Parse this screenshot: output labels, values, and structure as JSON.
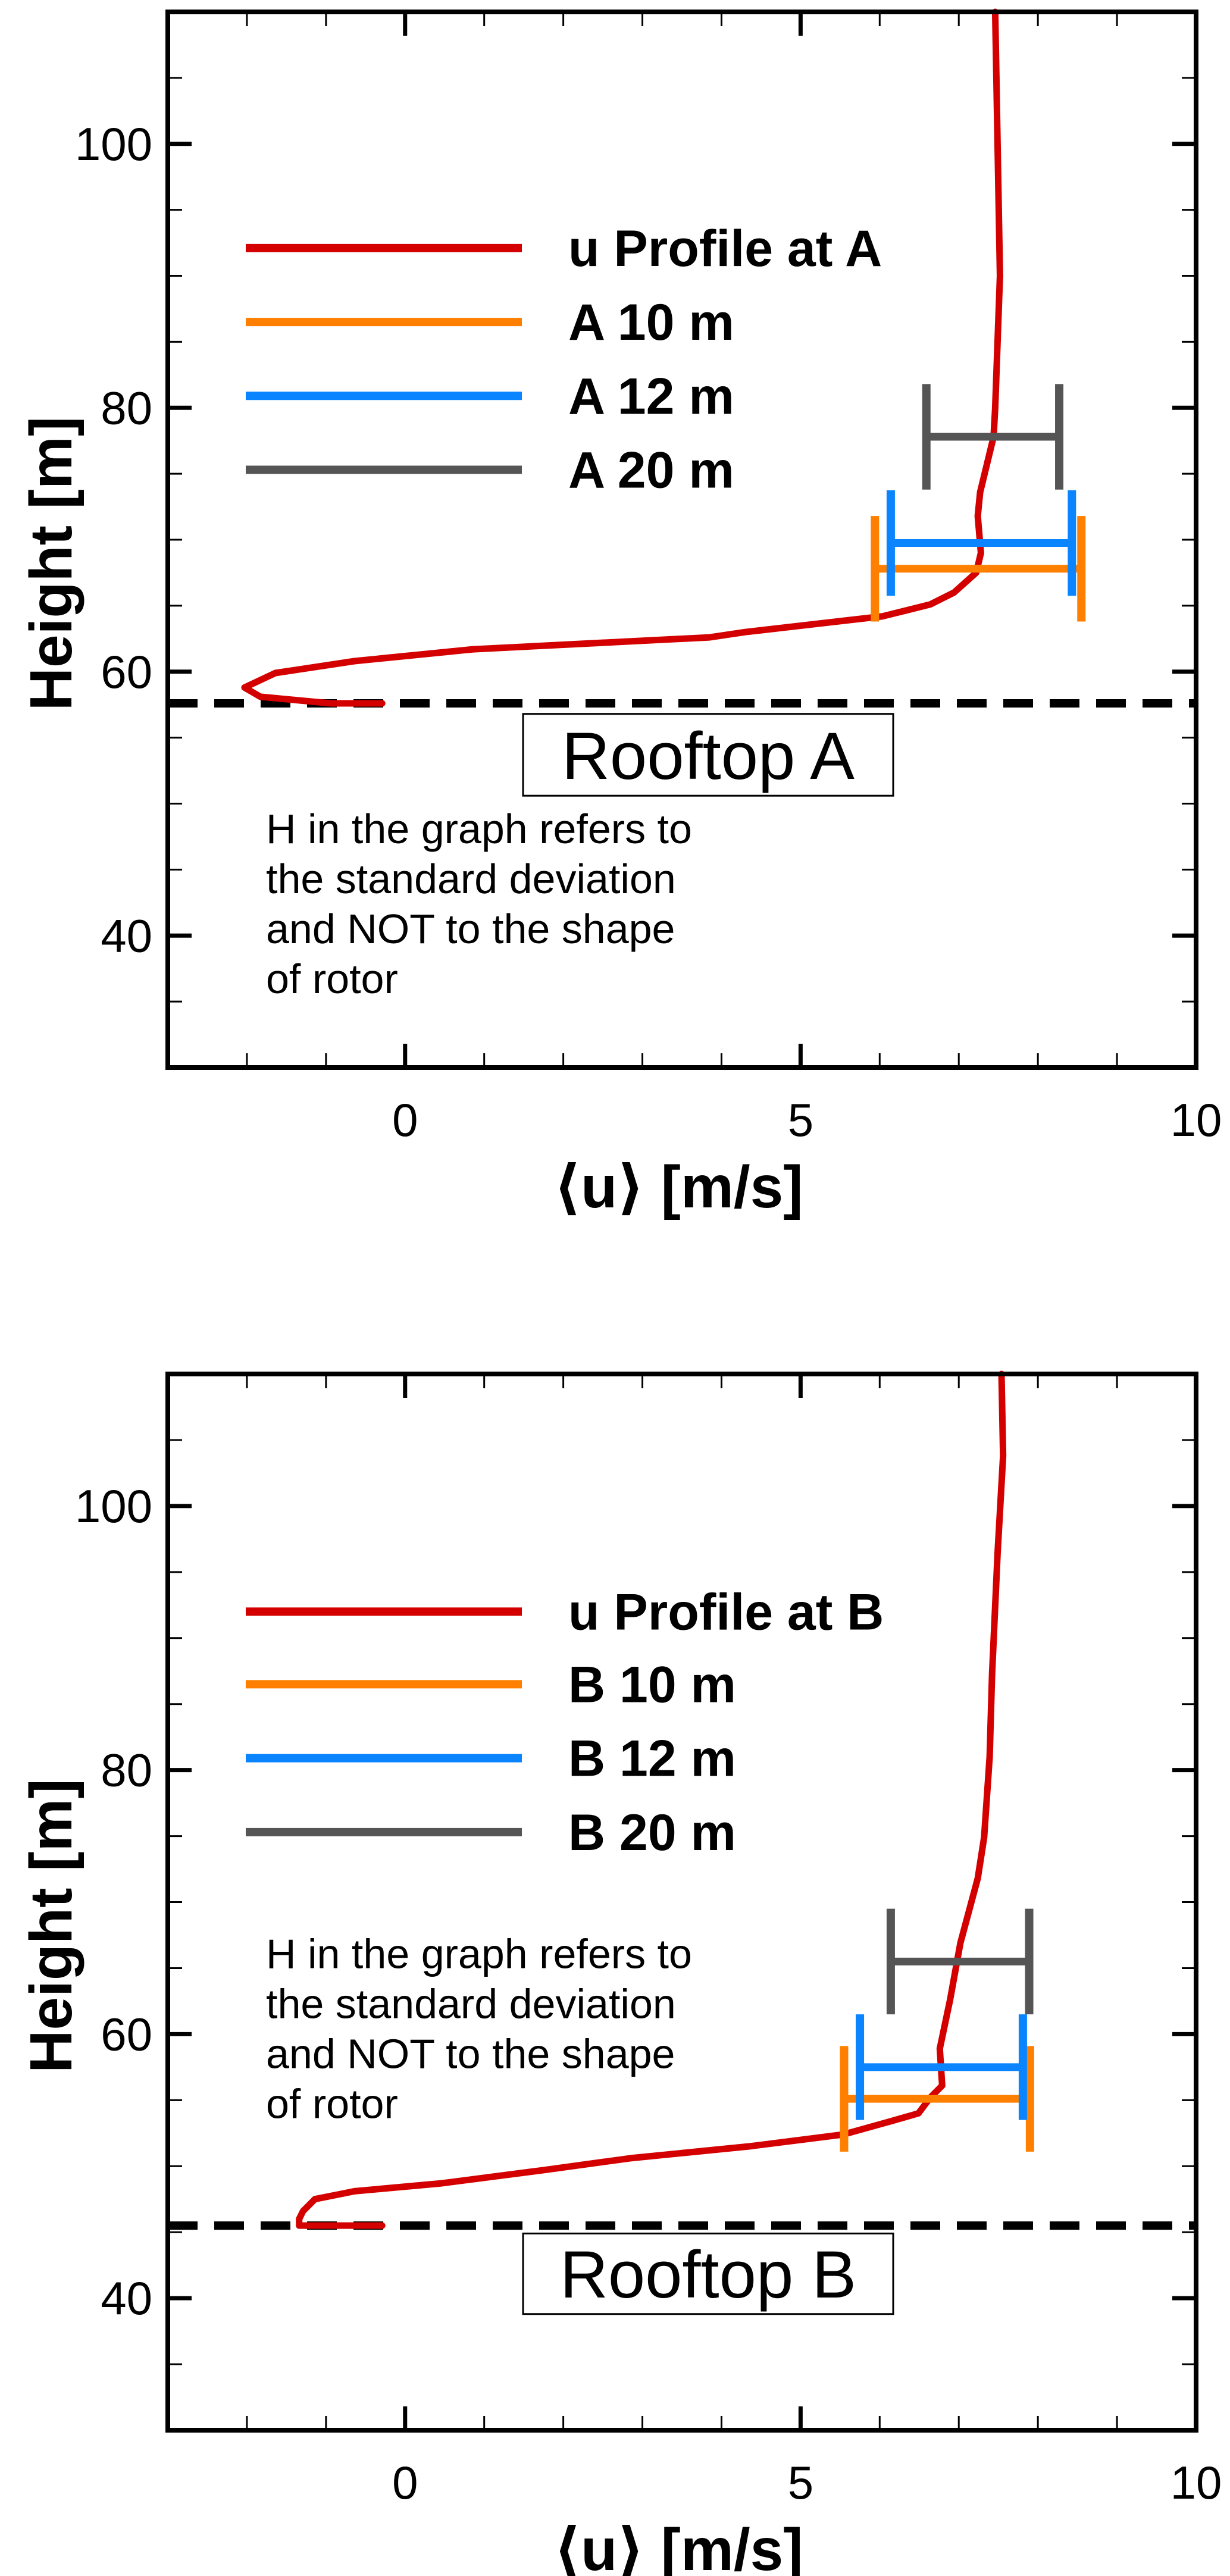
{
  "chart_data": [
    {
      "type": "line",
      "title": "",
      "xlabel": "⟨u⟩ [m/s]",
      "ylabel": "Height [m]",
      "xlim": [
        -3,
        10
      ],
      "ylim": [
        30,
        110
      ],
      "xticks": [
        0,
        5,
        10
      ],
      "xtick_labels": [
        "0",
        "5",
        "10"
      ],
      "yticks": [
        40,
        60,
        80,
        100
      ],
      "ytick_labels": [
        "40",
        "60",
        "80",
        "100"
      ],
      "x_minor_step": 1,
      "y_minor_step": 5,
      "grid": false,
      "legend_placement": "upper-left",
      "series": [
        {
          "name": "u Profile at A",
          "color": "#d40000",
          "kind": "profile",
          "points": [
            [
              -0.29,
              57.6
            ],
            [
              -0.94,
              57.6
            ],
            [
              -1.83,
              58.1
            ],
            [
              -2.03,
              58.8
            ],
            [
              -1.64,
              59.9
            ],
            [
              -0.64,
              60.8
            ],
            [
              0.86,
              61.7
            ],
            [
              3.85,
              62.6
            ],
            [
              4.3,
              63.0
            ],
            [
              6.04,
              64.2
            ],
            [
              6.64,
              65.1
            ],
            [
              6.94,
              66.0
            ],
            [
              7.22,
              67.5
            ],
            [
              7.28,
              69.0
            ],
            [
              7.24,
              71.8
            ],
            [
              7.27,
              73.6
            ],
            [
              7.44,
              77.8
            ],
            [
              7.46,
              80.0
            ],
            [
              7.52,
              90.0
            ],
            [
              7.49,
              100.0
            ],
            [
              7.46,
              110.0
            ]
          ]
        },
        {
          "name": "A 10 m",
          "color": "#ff8000",
          "kind": "errorbar",
          "y": 67.8,
          "xmin": 5.94,
          "xmax": 8.55,
          "cap_half_height": 4.0
        },
        {
          "name": "A 12 m",
          "color": "#0a84ff",
          "kind": "errorbar",
          "y": 69.75,
          "xmin": 6.14,
          "xmax": 8.43,
          "cap_half_height": 4.0
        },
        {
          "name": "A 20 m",
          "color": "#555555",
          "kind": "errorbar",
          "y": 77.8,
          "xmin": 6.59,
          "xmax": 8.27,
          "cap_half_height": 4.0
        }
      ],
      "rooftop": {
        "y": 57.6,
        "label": "Rooftop A"
      },
      "note": [
        "H in the graph refers to",
        "the standard deviation",
        "and NOT to the shape",
        "of rotor"
      ]
    },
    {
      "type": "line",
      "title": "",
      "xlabel": "⟨u⟩ [m/s]",
      "ylabel": "Height [m]",
      "xlim": [
        -3,
        10
      ],
      "ylim": [
        30,
        110
      ],
      "xticks": [
        0,
        5,
        10
      ],
      "xtick_labels": [
        "0",
        "5",
        "10"
      ],
      "yticks": [
        40,
        60,
        80,
        100
      ],
      "ytick_labels": [
        "40",
        "60",
        "80",
        "100"
      ],
      "x_minor_step": 1,
      "y_minor_step": 5,
      "grid": false,
      "legend_placement": "upper-left",
      "series": [
        {
          "name": "u Profile at B",
          "color": "#d40000",
          "kind": "profile",
          "points": [
            [
              -0.29,
              45.5
            ],
            [
              -1.34,
              45.5
            ],
            [
              -1.34,
              46.0
            ],
            [
              -1.29,
              46.6
            ],
            [
              -1.14,
              47.5
            ],
            [
              -0.64,
              48.1
            ],
            [
              0.46,
              48.7
            ],
            [
              1.75,
              49.7
            ],
            [
              2.85,
              50.6
            ],
            [
              4.35,
              51.5
            ],
            [
              5.54,
              52.4
            ],
            [
              6.14,
              53.4
            ],
            [
              6.49,
              54.0
            ],
            [
              6.64,
              55.2
            ],
            [
              6.79,
              56.1
            ],
            [
              6.76,
              58.9
            ],
            [
              6.89,
              62.6
            ],
            [
              7.02,
              66.9
            ],
            [
              7.24,
              71.8
            ],
            [
              7.32,
              74.9
            ],
            [
              7.39,
              81.0
            ],
            [
              7.42,
              87.2
            ],
            [
              7.49,
              96.4
            ],
            [
              7.56,
              103.8
            ],
            [
              7.54,
              110.0
            ]
          ]
        },
        {
          "name": "B 10 m",
          "color": "#ff8000",
          "kind": "errorbar",
          "y": 55.1,
          "xmin": 5.55,
          "xmax": 7.9,
          "cap_half_height": 4.0
        },
        {
          "name": "B 12 m",
          "color": "#0a84ff",
          "kind": "errorbar",
          "y": 57.5,
          "xmin": 5.75,
          "xmax": 7.81,
          "cap_half_height": 4.0
        },
        {
          "name": "B 20 m",
          "color": "#555555",
          "kind": "errorbar",
          "y": 65.5,
          "xmin": 6.14,
          "xmax": 7.89,
          "cap_half_height": 4.0
        }
      ],
      "rooftop": {
        "y": 45.5,
        "label": "Rooftop B"
      },
      "note": [
        "H in the graph refers to",
        "the standard deviation",
        "and NOT to the shape",
        "of rotor"
      ]
    }
  ]
}
